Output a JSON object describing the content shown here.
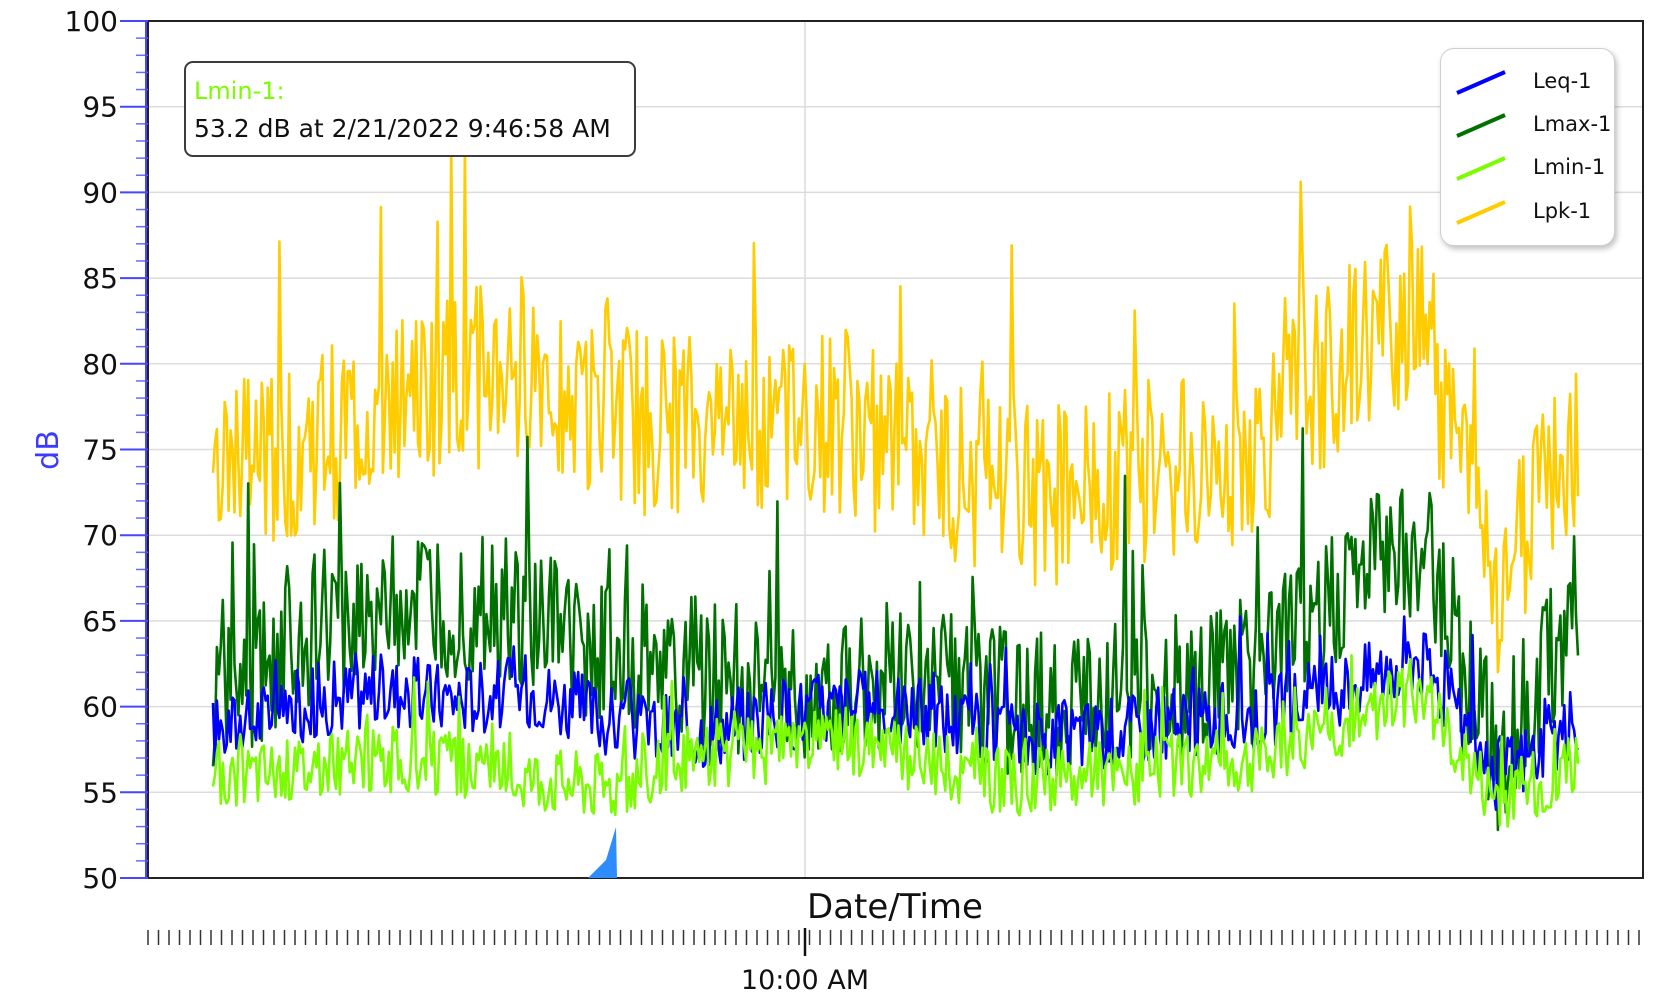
{
  "chart_data": {
    "type": "line",
    "xlabel": "Date/Time",
    "ylabel": "dB",
    "ylim": [
      50,
      100
    ],
    "yticks": [
      50,
      55,
      60,
      65,
      70,
      75,
      80,
      85,
      90,
      95,
      100
    ],
    "x_tick_labels": [
      "10:00 AM"
    ],
    "grid": true,
    "legend_position": "top-right",
    "x": [
      "2/21/2022 9:25 AM",
      "2/21/2022 9:30 AM",
      "2/21/2022 9:35 AM",
      "2/21/2022 9:40 AM",
      "2/21/2022 9:45 AM",
      "2/21/2022 9:50 AM",
      "2/21/2022 9:55 AM",
      "2/21/2022 10:00 AM",
      "2/21/2022 10:05 AM",
      "2/21/2022 10:10 AM",
      "2/21/2022 10:15 AM",
      "2/21/2022 10:20 AM",
      "2/21/2022 10:25 AM",
      "2/21/2022 10:30 AM",
      "2/21/2022 10:35 AM",
      "2/21/2022 10:40 AM",
      "2/21/2022 10:45 AM",
      "2/21/2022 10:50 AM"
    ],
    "series": [
      {
        "name": "Leq-1",
        "color": "#0000ff",
        "values": [
          58.5,
          60,
          61,
          60.5,
          61,
          59,
          58.5,
          59.5,
          60,
          59.5,
          58,
          58.5,
          59,
          59.5,
          61,
          63,
          56,
          59
        ]
      },
      {
        "name": "Lmax-1",
        "color": "#007000",
        "values": [
          60,
          64,
          66,
          66,
          65,
          63,
          62,
          61,
          62,
          61,
          60,
          60.5,
          61,
          62,
          66,
          70,
          57,
          66
        ]
      },
      {
        "name": "Lmin-1",
        "color": "#7cfc00",
        "values": [
          56,
          56.5,
          57,
          56.5,
          56,
          55.5,
          57,
          57.5,
          58,
          56.5,
          55.5,
          56,
          56.5,
          57,
          59,
          61,
          54.5,
          56.5
        ]
      },
      {
        "name": "Lpk-1",
        "color": "#ffcc00",
        "values": [
          73,
          75,
          77,
          79,
          80,
          77,
          76,
          77,
          76,
          74,
          72,
          73,
          74,
          75,
          80,
          83,
          67,
          76
        ]
      }
    ],
    "tooltip": {
      "series": "Lmin-1:",
      "text": "53.2 dB at 2/21/2022 9:46:58 AM"
    }
  }
}
